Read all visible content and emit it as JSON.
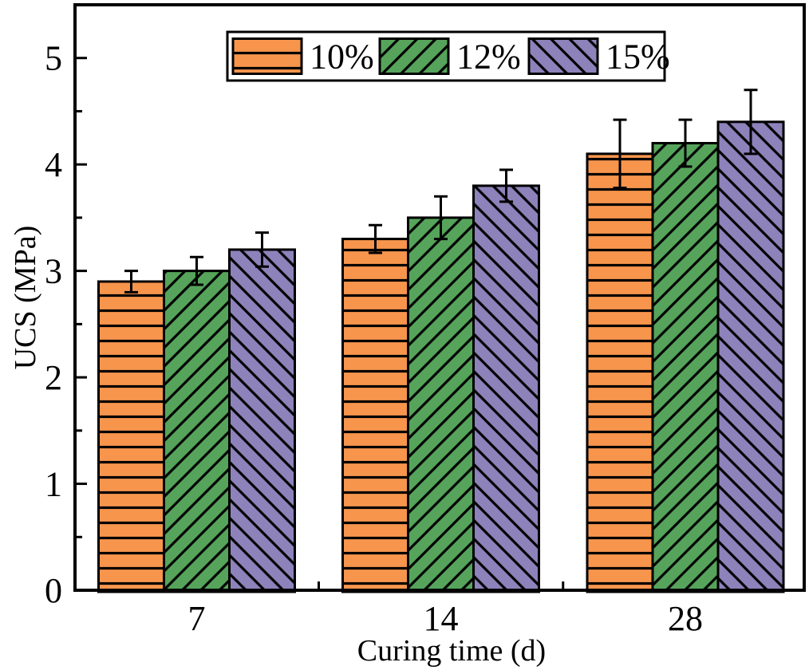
{
  "chart_data": {
    "type": "bar",
    "title": "",
    "xlabel": "Curing time (d)",
    "ylabel": "UCS (MPa)",
    "categories": [
      "7",
      "14",
      "28"
    ],
    "series": [
      {
        "name": "10%",
        "values": [
          2.9,
          3.3,
          4.1
        ],
        "errors": [
          0.1,
          0.13,
          0.32
        ],
        "color": "#F7954D",
        "hatch": "horizontal"
      },
      {
        "name": "12%",
        "values": [
          3.0,
          3.5,
          4.2
        ],
        "errors": [
          0.13,
          0.2,
          0.22
        ],
        "color": "#56A45B",
        "hatch": "forward-diagonal"
      },
      {
        "name": "15%",
        "values": [
          3.2,
          3.8,
          4.4
        ],
        "errors": [
          0.16,
          0.15,
          0.3
        ],
        "color": "#8D82BA",
        "hatch": "backward-diagonal"
      }
    ],
    "ylim": [
      0,
      5.5
    ],
    "yticks": [
      0,
      1,
      2,
      3,
      4,
      5
    ],
    "minor_tick_step": 0.5,
    "grid": false,
    "legend_position": "top-center",
    "bar_edge_color": "#000000",
    "hatch_color": "#000000",
    "axis_color": "#000000",
    "error_bar_color": "#000000"
  }
}
